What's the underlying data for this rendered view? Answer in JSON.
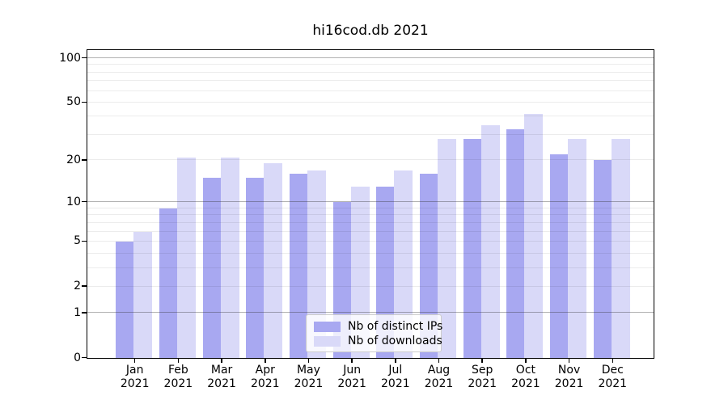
{
  "chart_data": {
    "type": "bar",
    "title": "hi16cod.db 2021",
    "categories": [
      "Jan 2021",
      "Feb 2021",
      "Mar 2021",
      "Apr 2021",
      "May 2021",
      "Jun 2021",
      "Jul 2021",
      "Aug 2021",
      "Sep 2021",
      "Oct 2021",
      "Nov 2021",
      "Dec 2021"
    ],
    "months": [
      "Jan",
      "Feb",
      "Mar",
      "Apr",
      "May",
      "Jun",
      "Jul",
      "Aug",
      "Sep",
      "Oct",
      "Nov",
      "Dec"
    ],
    "year": "2021",
    "series": [
      {
        "name": "Nb of distinct IPs",
        "color": "#a8a8f1",
        "values": [
          5,
          9,
          15,
          15,
          16,
          10,
          13,
          16,
          28,
          33,
          22,
          20
        ]
      },
      {
        "name": "Nb of downloads",
        "color": "#d9d9f8",
        "values": [
          6,
          21,
          21,
          19,
          17,
          13,
          17,
          28,
          35,
          42,
          28,
          28
        ]
      }
    ],
    "y_axis": {
      "scale": "log(value+1)",
      "tick_labels": [
        "0",
        "1",
        "2",
        "5",
        "10",
        "20",
        "50",
        "100"
      ],
      "tick_values": [
        0,
        1,
        2,
        5,
        10,
        20,
        50,
        100
      ],
      "minor_gridline_values": [
        2,
        3,
        4,
        5,
        6,
        7,
        8,
        9,
        20,
        30,
        40,
        50,
        60,
        70,
        80,
        90
      ],
      "major_gridline_values": [
        1,
        10,
        100
      ],
      "ylim": [
        0,
        113
      ]
    },
    "legend": {
      "position": "lower center",
      "entries": [
        "Nb of distinct IPs",
        "Nb of downloads"
      ]
    },
    "grid": true
  }
}
